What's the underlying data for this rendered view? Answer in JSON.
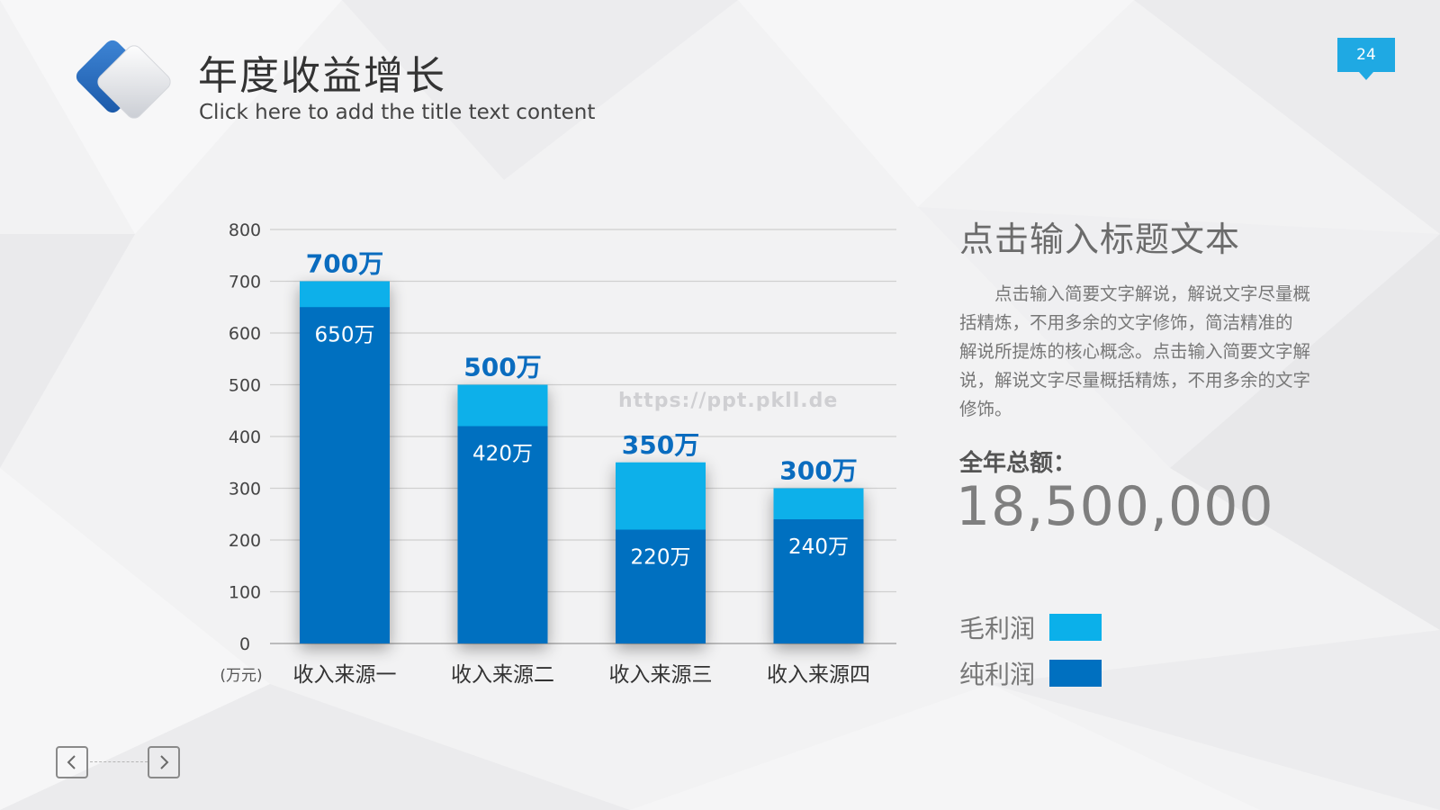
{
  "slide": {
    "title": "年度收益增长",
    "subtitle": "Click here to add the title text content",
    "page_number": "24",
    "accent_colors": {
      "light_blue": "#0bb0ea",
      "dark_blue": "#0070c0",
      "badge": "#1fa9e3"
    }
  },
  "chart_data": {
    "type": "bar",
    "stacked_overlay": true,
    "categories": [
      "收入来源一",
      "收入来源二",
      "收入来源三",
      "收入来源四"
    ],
    "series": [
      {
        "name": "毛利润",
        "color": "#0bb0ea",
        "values": [
          700,
          500,
          350,
          300
        ],
        "labels": [
          "700万",
          "500万",
          "350万",
          "300万"
        ]
      },
      {
        "name": "纯利润",
        "color": "#0070c0",
        "values": [
          650,
          420,
          220,
          240
        ],
        "labels": [
          "650万",
          "420万",
          "220万",
          "240万"
        ]
      }
    ],
    "y_ticks": [
      "0",
      "100",
      "200",
      "300",
      "400",
      "500",
      "600",
      "700",
      "800"
    ],
    "ylim": [
      0,
      800
    ],
    "yunit": "(万元)",
    "grid": true,
    "legend_position": "right"
  },
  "watermark": "https://ppt.pkll.de",
  "side_panel": {
    "heading": "点击输入标题文本",
    "body": "点击输入简要文字解说，解说文字尽量概括精炼，不用多余的文字修饰，简洁精准的 解说所提炼的核心概念。点击输入简要文字解说，解说文字尽量概括精炼，不用多余的文字修饰。",
    "total_label": "全年总额：",
    "total_value": "18,500,000"
  },
  "legend": [
    {
      "label": "毛利润",
      "color": "#0bb0ea"
    },
    {
      "label": "纯利润",
      "color": "#0070c0"
    }
  ],
  "nav": {
    "prev_icon": "chevron-left-icon",
    "next_icon": "chevron-right-icon"
  }
}
